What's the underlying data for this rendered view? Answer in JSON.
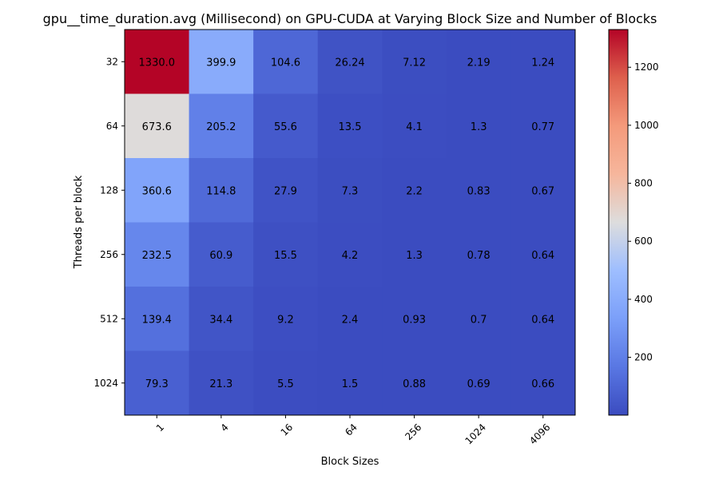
{
  "chart_data": {
    "type": "heatmap",
    "title": "gpu__time_duration.avg (Millisecond) on GPU-CUDA at Varying Block Size and Number of Blocks",
    "xlabel": "Block Sizes",
    "ylabel": "Threads per block",
    "x_categories": [
      "1",
      "4",
      "16",
      "64",
      "256",
      "1024",
      "4096"
    ],
    "y_categories": [
      "32",
      "64",
      "128",
      "256",
      "512",
      "1024"
    ],
    "values": [
      [
        1330.0,
        399.9,
        104.6,
        26.24,
        7.12,
        2.19,
        1.24
      ],
      [
        673.6,
        205.2,
        55.6,
        13.5,
        4.1,
        1.3,
        0.77
      ],
      [
        360.6,
        114.8,
        27.9,
        7.3,
        2.2,
        0.83,
        0.67
      ],
      [
        232.5,
        60.9,
        15.5,
        4.2,
        1.3,
        0.78,
        0.64
      ],
      [
        139.4,
        34.4,
        9.2,
        2.4,
        0.93,
        0.7,
        0.64
      ],
      [
        79.3,
        21.3,
        5.5,
        1.5,
        0.88,
        0.69,
        0.66
      ]
    ],
    "cell_labels": [
      [
        "1330.0",
        "399.9",
        "104.6",
        "26.24",
        "7.12",
        "2.19",
        "1.24"
      ],
      [
        "673.6",
        "205.2",
        "55.6",
        "13.5",
        "4.1",
        "1.3",
        "0.77"
      ],
      [
        "360.6",
        "114.8",
        "27.9",
        "7.3",
        "2.2",
        "0.83",
        "0.67"
      ],
      [
        "232.5",
        "60.9",
        "15.5",
        "4.2",
        "1.3",
        "0.78",
        "0.64"
      ],
      [
        "139.4",
        "34.4",
        "9.2",
        "2.4",
        "0.93",
        "0.7",
        "0.64"
      ],
      [
        "79.3",
        "21.3",
        "5.5",
        "1.5",
        "0.88",
        "0.69",
        "0.66"
      ]
    ],
    "colormap": "coolwarm",
    "colorbar": {
      "range": [
        0.64,
        1330.0
      ],
      "ticks": [
        200,
        400,
        600,
        800,
        1000,
        1200
      ],
      "tick_labels": [
        "200",
        "400",
        "600",
        "800",
        "1000",
        "1200"
      ]
    },
    "grid": false
  }
}
